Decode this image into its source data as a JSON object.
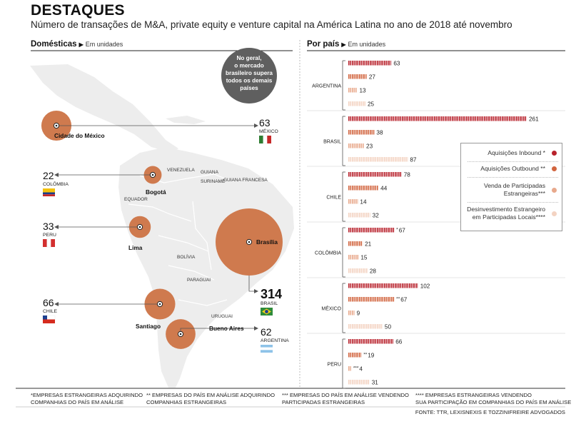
{
  "header": {
    "title": "DESTAQUES",
    "subtitle": "Número de transações de M&A, private equity e venture capital na América Latina no ano de 2018 até novembro"
  },
  "left_panel": {
    "heading": "Domésticas",
    "unit": "Em unidades",
    "callout": [
      "No geral,",
      "o mercado",
      "brasileiro supera",
      "todos os demais",
      "países"
    ],
    "cities": [
      "Cidade do México",
      "Bogotá",
      "Lima",
      "Brasília",
      "Santiago",
      "Bueno Aires"
    ],
    "region_labels": [
      "VENEZUELA",
      "GUIANA",
      "SURINAME",
      "GUIANA FRANCESA",
      "EQUADOR",
      "BOLÍVIA",
      "PARAGUAI",
      "URUGUAI"
    ]
  },
  "colors": {
    "inbound": "#b8222c",
    "outbound": "#d2653f",
    "venda": "#e8a98c",
    "desinvestimento": "#f3d3c2",
    "bubble": "#cf7a4e",
    "callout": "#5f5f5f"
  },
  "legend": {
    "items": [
      {
        "label": [
          "Aquisições Inbound *"
        ],
        "color": "#b8222c"
      },
      {
        "label": [
          "Aquisições Outbound **"
        ],
        "color": "#d2653f"
      },
      {
        "label": [
          "Venda de Participadas",
          "Estrangeiras***"
        ],
        "color": "#e8a98c"
      },
      {
        "label": [
          "Desinvestimento Estrangeiro",
          "em Participadas Locais****"
        ],
        "color": "#f3d3c2"
      }
    ]
  },
  "footnotes": [
    [
      "*EMPRESAS ESTRANGEIRAS ADQUIRINDO",
      "COMPANHIAS DO PAÍS EM ANÁLISE"
    ],
    [
      "** EMPRESAS DO PAÍS EM ANÁLISE ADQUIRINDO",
      "COMPANHIAS ESTRANGEIRAS"
    ],
    [
      "*** EMPRESAS DO PAÍS EM ANÁLISE VENDENDO",
      "PARTICIPADAS ESTRANGEIRAS"
    ],
    [
      "**** EMPRESAS ESTRANGEIRAS VENDENDO",
      "SUA PARTICIPAÇÃO EM COMPANHIAS DO PAÍS EM ANÁLISE"
    ]
  ],
  "source": "FONTE: TTR, LEXISNEXIS E TOZZINIFREIRE ADVOGADOS",
  "chart_data": [
    {
      "type": "bubble-map",
      "title": "Domésticas",
      "unit": "Em unidades",
      "points": [
        {
          "country": "BRASIL",
          "city": "Brasília",
          "value": 314
        },
        {
          "country": "MÉXICO",
          "city": "Cidade do México",
          "value": 63
        },
        {
          "country": "CHILE",
          "city": "Santiago",
          "value": 66
        },
        {
          "country": "ARGENTINA",
          "city": "Bueno Aires",
          "value": 62
        },
        {
          "country": "PERU",
          "city": "Lima",
          "value": 33
        },
        {
          "country": "COLÔMBIA",
          "city": "Bogotá",
          "value": 22
        }
      ]
    },
    {
      "type": "bar",
      "orientation": "horizontal",
      "title": "Por país",
      "unit": "Em unidades",
      "categories": [
        "ARGENTINA",
        "BRASIL",
        "CHILE",
        "COLÔMBIA",
        "MÉXICO",
        "PERU"
      ],
      "series": [
        {
          "name": "Aquisições Inbound *",
          "values": [
            63,
            261,
            78,
            67,
            102,
            66
          ],
          "marks": [
            "",
            "",
            "",
            "*",
            "",
            ""
          ]
        },
        {
          "name": "Aquisições Outbound **",
          "values": [
            27,
            38,
            44,
            21,
            67,
            19
          ],
          "marks": [
            "",
            "",
            "",
            "",
            "**",
            "**"
          ]
        },
        {
          "name": "Venda de Participadas Estrangeiras***",
          "values": [
            13,
            23,
            14,
            15,
            9,
            4
          ],
          "marks": [
            "",
            "",
            "",
            "",
            "",
            "***"
          ]
        },
        {
          "name": "Desinvestimento Estrangeiro em Participadas Locais****",
          "values": [
            25,
            87,
            32,
            28,
            50,
            31
          ],
          "marks": [
            "",
            "",
            "",
            "",
            "",
            ""
          ]
        }
      ]
    }
  ]
}
